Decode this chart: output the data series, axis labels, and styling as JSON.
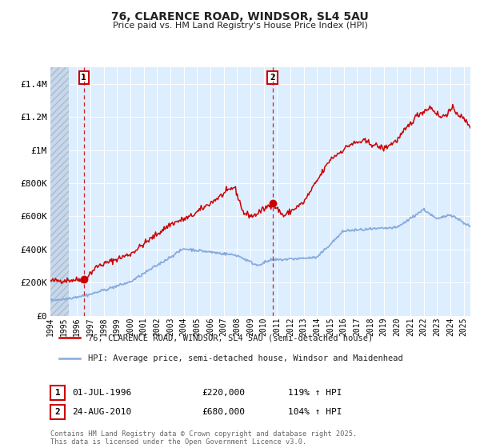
{
  "title": "76, CLARENCE ROAD, WINDSOR, SL4 5AU",
  "subtitle": "Price paid vs. HM Land Registry's House Price Index (HPI)",
  "ylim": [
    0,
    1500000
  ],
  "yticks": [
    0,
    200000,
    400000,
    600000,
    800000,
    1000000,
    1200000,
    1400000
  ],
  "ytick_labels": [
    "£0",
    "£200K",
    "£400K",
    "£600K",
    "£800K",
    "£1M",
    "£1.2M",
    "£1.4M"
  ],
  "background_color": "#ffffff",
  "plot_bg_color": "#ddeeff",
  "grid_color": "#ffffff",
  "red_line_color": "#cc0000",
  "blue_line_color": "#88aadd",
  "dot_color": "#cc0000",
  "sale1_year": 1996.5,
  "sale1_price": 220000,
  "sale1_label": "1",
  "sale1_date": "01-JUL-1996",
  "sale1_price_str": "£220,000",
  "sale1_hpi": "119% ↑ HPI",
  "sale2_year": 2010.65,
  "sale2_price": 680000,
  "sale2_label": "2",
  "sale2_date": "24-AUG-2010",
  "sale2_price_str": "£680,000",
  "sale2_hpi": "104% ↑ HPI",
  "legend_line1": "76, CLARENCE ROAD, WINDSOR, SL4 5AU (semi-detached house)",
  "legend_line2": "HPI: Average price, semi-detached house, Windsor and Maidenhead",
  "footer": "Contains HM Land Registry data © Crown copyright and database right 2025.\nThis data is licensed under the Open Government Licence v3.0.",
  "hatch_end_year": 1995.4,
  "xlim_start": 1994.0,
  "xlim_end": 2025.5
}
